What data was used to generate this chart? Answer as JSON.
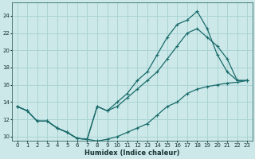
{
  "xlabel": "Humidex (Indice chaleur)",
  "bg_color": "#cce8e8",
  "grid_color": "#aad4d4",
  "line_color": "#1a6b6b",
  "xlim": [
    -0.5,
    23.5
  ],
  "ylim": [
    9.5,
    25.5
  ],
  "xticks": [
    0,
    1,
    2,
    3,
    4,
    5,
    6,
    7,
    8,
    9,
    10,
    11,
    12,
    13,
    14,
    15,
    16,
    17,
    18,
    19,
    20,
    21,
    22,
    23
  ],
  "yticks": [
    10,
    12,
    14,
    16,
    18,
    20,
    22,
    24
  ],
  "line1_x": [
    0,
    1,
    2,
    3,
    4,
    5,
    6,
    7,
    8,
    9,
    10,
    11,
    12,
    13,
    14,
    15,
    16,
    17,
    18,
    19,
    20,
    21,
    22,
    23
  ],
  "line1_y": [
    13.5,
    13.0,
    11.8,
    11.8,
    11.0,
    10.5,
    9.8,
    9.7,
    9.5,
    9.7,
    10.0,
    10.5,
    11.0,
    11.5,
    12.5,
    13.5,
    14.0,
    15.0,
    15.5,
    15.8,
    16.0,
    16.2,
    16.3,
    16.5
  ],
  "line2_x": [
    0,
    1,
    2,
    3,
    4,
    5,
    6,
    7,
    8,
    9,
    10,
    11,
    12,
    13,
    14,
    15,
    16,
    17,
    18,
    19,
    20,
    21,
    22,
    23
  ],
  "line2_y": [
    13.5,
    13.0,
    11.8,
    11.8,
    11.0,
    10.5,
    9.8,
    9.7,
    13.5,
    13.0,
    14.0,
    15.0,
    16.5,
    17.5,
    19.5,
    21.5,
    23.0,
    23.5,
    24.5,
    22.5,
    19.5,
    17.5,
    16.5,
    16.5
  ],
  "line3_x": [
    0,
    1,
    2,
    3,
    4,
    5,
    6,
    7,
    8,
    9,
    10,
    11,
    12,
    13,
    14,
    15,
    16,
    17,
    18,
    19,
    20,
    21,
    22,
    23
  ],
  "line3_y": [
    13.5,
    13.0,
    11.8,
    11.8,
    11.0,
    10.5,
    9.8,
    9.7,
    13.5,
    13.0,
    13.5,
    14.5,
    15.5,
    16.5,
    17.5,
    19.0,
    20.5,
    22.0,
    22.5,
    21.5,
    20.5,
    19.0,
    16.5,
    16.5
  ]
}
